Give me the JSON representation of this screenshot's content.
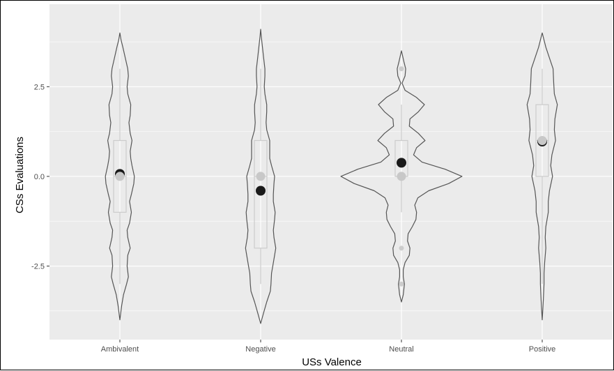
{
  "chart_data": {
    "type": "violin",
    "xlabel": "USs Valence",
    "ylabel": "CSs Evaluations",
    "categories": [
      "Ambivalent",
      "Negative",
      "Neutral",
      "Positive"
    ],
    "ylim": [
      -4.0,
      4.0
    ],
    "yticks": [
      -2.5,
      0.0,
      2.5
    ],
    "ytick_labels": [
      "-2.5",
      "0.0",
      "2.5"
    ],
    "grid": true,
    "background": "#ebebeb",
    "violin_outline_color": "#555555",
    "box_color": "#cccccc",
    "mean_color": "#1a1a1a",
    "median_color": "#c8c8c8",
    "series": [
      {
        "category": "Ambivalent",
        "mean": 0.07,
        "box": {
          "q1": -1.0,
          "median": 0.0,
          "q3": 1.0,
          "whisker_low": -3.0,
          "whisker_high": 3.0
        },
        "outliers": [],
        "density": [
          [
            -4.0,
            0.0
          ],
          [
            -3.6,
            0.03
          ],
          [
            -3.3,
            0.06
          ],
          [
            -3.0,
            0.11
          ],
          [
            -2.8,
            0.14
          ],
          [
            -2.5,
            0.12
          ],
          [
            -2.2,
            0.13
          ],
          [
            -2.0,
            0.17
          ],
          [
            -1.7,
            0.13
          ],
          [
            -1.5,
            0.12
          ],
          [
            -1.3,
            0.16
          ],
          [
            -1.0,
            0.19
          ],
          [
            -0.7,
            0.16
          ],
          [
            -0.5,
            0.19
          ],
          [
            -0.2,
            0.23
          ],
          [
            0.0,
            0.24
          ],
          [
            0.3,
            0.2
          ],
          [
            0.5,
            0.18
          ],
          [
            0.7,
            0.17
          ],
          [
            1.0,
            0.2
          ],
          [
            1.2,
            0.17
          ],
          [
            1.5,
            0.15
          ],
          [
            1.7,
            0.17
          ],
          [
            2.0,
            0.18
          ],
          [
            2.3,
            0.13
          ],
          [
            2.5,
            0.12
          ],
          [
            2.8,
            0.14
          ],
          [
            3.0,
            0.13
          ],
          [
            3.3,
            0.09
          ],
          [
            3.6,
            0.05
          ],
          [
            3.8,
            0.02
          ],
          [
            4.0,
            0.0
          ]
        ]
      },
      {
        "category": "Negative",
        "mean": -0.4,
        "box": {
          "q1": -2.0,
          "median": 0.0,
          "q3": 1.0,
          "whisker_low": -3.0,
          "whisker_high": 3.0
        },
        "outliers": [],
        "density": [
          [
            -4.1,
            0.0
          ],
          [
            -3.8,
            0.05
          ],
          [
            -3.5,
            0.1
          ],
          [
            -3.2,
            0.16
          ],
          [
            -3.0,
            0.17
          ],
          [
            -2.7,
            0.18
          ],
          [
            -2.5,
            0.2
          ],
          [
            -2.2,
            0.23
          ],
          [
            -2.0,
            0.25
          ],
          [
            -1.7,
            0.22
          ],
          [
            -1.5,
            0.21
          ],
          [
            -1.2,
            0.23
          ],
          [
            -1.0,
            0.24
          ],
          [
            -0.7,
            0.21
          ],
          [
            -0.5,
            0.21
          ],
          [
            -0.2,
            0.22
          ],
          [
            0.0,
            0.23
          ],
          [
            0.3,
            0.18
          ],
          [
            0.5,
            0.15
          ],
          [
            0.8,
            0.15
          ],
          [
            1.0,
            0.15
          ],
          [
            1.3,
            0.1
          ],
          [
            1.5,
            0.09
          ],
          [
            1.8,
            0.1
          ],
          [
            2.0,
            0.1
          ],
          [
            2.3,
            0.07
          ],
          [
            2.5,
            0.06
          ],
          [
            2.8,
            0.07
          ],
          [
            3.0,
            0.07
          ],
          [
            3.3,
            0.05
          ],
          [
            3.6,
            0.03
          ],
          [
            3.9,
            0.01
          ],
          [
            4.1,
            0.0
          ]
        ]
      },
      {
        "category": "Neutral",
        "mean": 0.38,
        "box": {
          "q1": 0.0,
          "median": 0.0,
          "q3": 1.0,
          "whisker_low": -1.0,
          "whisker_high": 2.0
        },
        "outliers": [
          3.0,
          -2.0,
          -3.0
        ],
        "density": [
          [
            -3.5,
            0.0
          ],
          [
            -3.3,
            0.03
          ],
          [
            -3.0,
            0.05
          ],
          [
            -2.8,
            0.03
          ],
          [
            -2.6,
            0.03
          ],
          [
            -2.4,
            0.06
          ],
          [
            -2.2,
            0.13
          ],
          [
            -2.0,
            0.14
          ],
          [
            -1.8,
            0.1
          ],
          [
            -1.6,
            0.11
          ],
          [
            -1.4,
            0.18
          ],
          [
            -1.2,
            0.24
          ],
          [
            -1.0,
            0.25
          ],
          [
            -0.8,
            0.22
          ],
          [
            -0.6,
            0.27
          ],
          [
            -0.4,
            0.45
          ],
          [
            -0.2,
            0.78
          ],
          [
            0.0,
            1.0
          ],
          [
            0.2,
            0.72
          ],
          [
            0.4,
            0.34
          ],
          [
            0.6,
            0.2
          ],
          [
            0.8,
            0.25
          ],
          [
            1.0,
            0.39
          ],
          [
            1.2,
            0.28
          ],
          [
            1.4,
            0.13
          ],
          [
            1.6,
            0.14
          ],
          [
            1.8,
            0.28
          ],
          [
            2.0,
            0.38
          ],
          [
            2.2,
            0.25
          ],
          [
            2.4,
            0.06
          ],
          [
            2.6,
            0.01
          ],
          [
            2.8,
            0.06
          ],
          [
            3.0,
            0.07
          ],
          [
            3.2,
            0.04
          ],
          [
            3.5,
            0.0
          ]
        ]
      },
      {
        "category": "Positive",
        "mean": 0.97,
        "box": {
          "q1": 0.0,
          "median": 1.0,
          "q3": 2.0,
          "whisker_low": -3.0,
          "whisker_high": 3.0
        },
        "outliers": [],
        "density": [
          [
            -4.0,
            0.0
          ],
          [
            -3.7,
            0.01
          ],
          [
            -3.4,
            0.02
          ],
          [
            -3.0,
            0.03
          ],
          [
            -2.7,
            0.03
          ],
          [
            -2.4,
            0.04
          ],
          [
            -2.0,
            0.06
          ],
          [
            -1.7,
            0.05
          ],
          [
            -1.4,
            0.06
          ],
          [
            -1.0,
            0.1
          ],
          [
            -0.7,
            0.1
          ],
          [
            -0.4,
            0.12
          ],
          [
            0.0,
            0.17
          ],
          [
            0.3,
            0.14
          ],
          [
            0.6,
            0.16
          ],
          [
            1.0,
            0.22
          ],
          [
            1.3,
            0.2
          ],
          [
            1.6,
            0.21
          ],
          [
            2.0,
            0.25
          ],
          [
            2.3,
            0.2
          ],
          [
            2.6,
            0.19
          ],
          [
            3.0,
            0.18
          ],
          [
            3.3,
            0.12
          ],
          [
            3.6,
            0.06
          ],
          [
            3.8,
            0.03
          ],
          [
            4.0,
            0.0
          ]
        ]
      }
    ]
  }
}
